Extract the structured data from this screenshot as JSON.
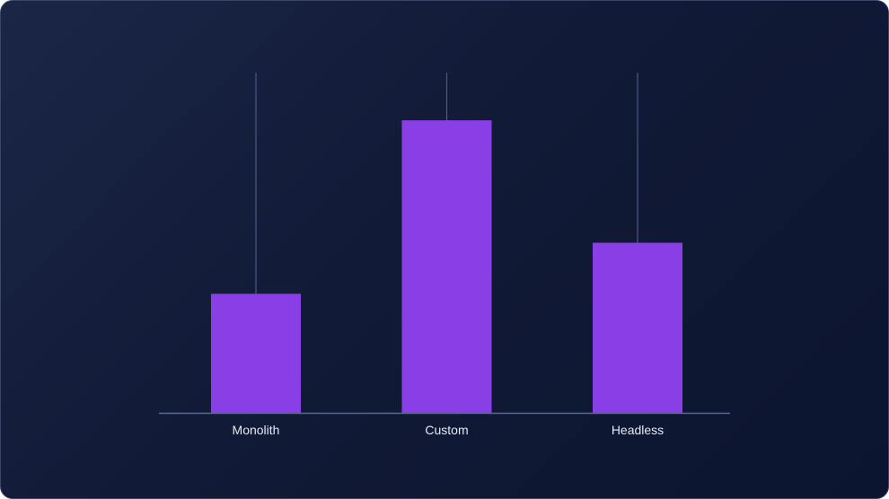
{
  "chart_data": {
    "type": "bar",
    "categories": [
      "Monolith",
      "Custom",
      "Headless"
    ],
    "values": [
      35,
      86,
      50
    ],
    "ylim": [
      0,
      100
    ],
    "title": "",
    "xlabel": "",
    "ylabel": "",
    "grid": false,
    "legend": "none",
    "bar_color": "#8a3ee6",
    "track_color": "#4a5a86",
    "axis_color": "#5a6890"
  }
}
